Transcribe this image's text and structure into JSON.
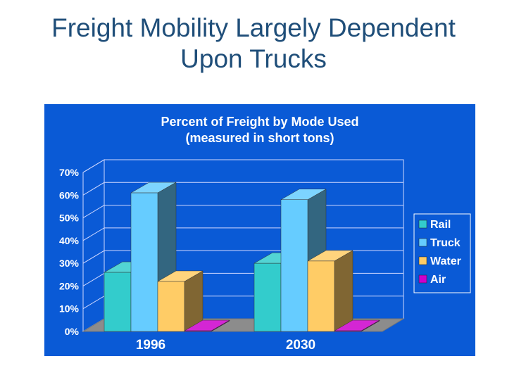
{
  "slide": {
    "title_line1": "Freight Mobility Largely Dependent",
    "title_line2": "Upon Trucks"
  },
  "chart_data": {
    "type": "bar",
    "title": "Percent of Freight by Mode Used",
    "subtitle": "(measured in short tons)",
    "categories": [
      "1996",
      "2030"
    ],
    "series": [
      {
        "name": "Rail",
        "color": "#33cccc",
        "values": [
          26,
          30
        ]
      },
      {
        "name": "Truck",
        "color": "#66ccff",
        "values": [
          61,
          58
        ]
      },
      {
        "name": "Water",
        "color": "#ffcc66",
        "values": [
          22,
          31
        ]
      },
      {
        "name": "Air",
        "color": "#cc00cc",
        "values": [
          0.3,
          0.3
        ]
      }
    ],
    "y_ticks": [
      "0%",
      "10%",
      "20%",
      "30%",
      "40%",
      "50%",
      "60%",
      "70%"
    ],
    "ylim": [
      0,
      70
    ],
    "xlabel": "",
    "ylabel": "",
    "legend": "right",
    "grid": true,
    "style": "3d"
  }
}
